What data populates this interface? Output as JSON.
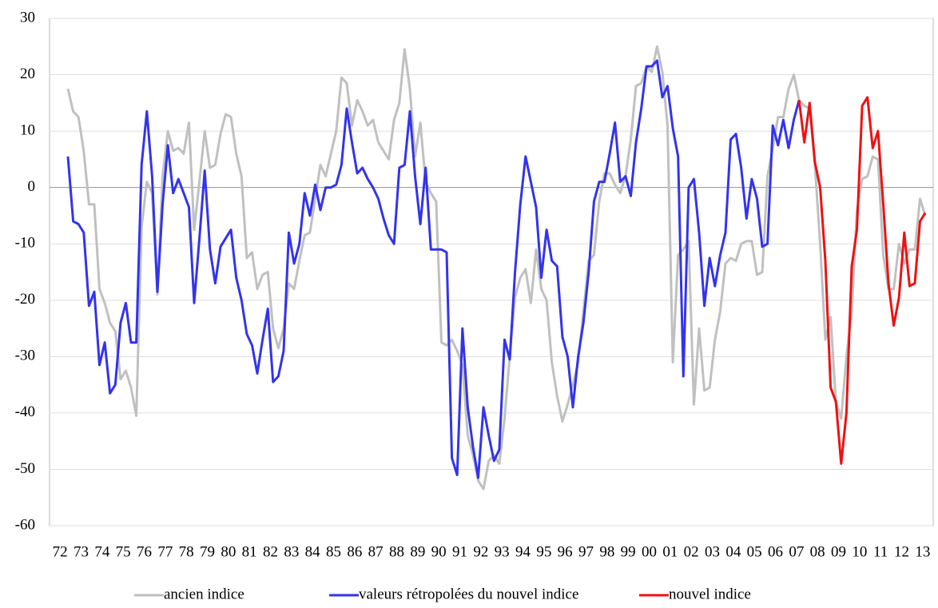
{
  "chart_data": {
    "type": "line",
    "categories": [
      "72",
      null,
      null,
      null,
      "73",
      null,
      null,
      null,
      "74",
      null,
      null,
      null,
      "75",
      null,
      null,
      null,
      "76",
      null,
      null,
      null,
      "77",
      null,
      null,
      null,
      "78",
      null,
      null,
      null,
      "79",
      null,
      null,
      null,
      "80",
      null,
      null,
      null,
      "81",
      null,
      null,
      null,
      "82",
      null,
      null,
      null,
      "83",
      null,
      null,
      null,
      "84",
      null,
      null,
      null,
      "85",
      null,
      null,
      null,
      "86",
      null,
      null,
      null,
      "87",
      null,
      null,
      null,
      "88",
      null,
      null,
      null,
      "89",
      null,
      null,
      null,
      "90",
      null,
      null,
      null,
      "91",
      null,
      null,
      null,
      "92",
      null,
      null,
      null,
      "93",
      null,
      null,
      null,
      "94",
      null,
      null,
      null,
      "95",
      null,
      null,
      null,
      "96",
      null,
      null,
      null,
      "97",
      null,
      null,
      null,
      "98",
      null,
      null,
      null,
      "99",
      null,
      null,
      null,
      "00",
      null,
      null,
      null,
      "01",
      null,
      null,
      null,
      "02",
      null,
      null,
      null,
      "03",
      null,
      null,
      null,
      "04",
      null,
      null,
      null,
      "05",
      null,
      null,
      null,
      "06",
      null,
      null,
      null,
      "07",
      null,
      null,
      null,
      "08",
      null,
      null,
      null,
      "09",
      null,
      null,
      null,
      "10",
      null,
      null,
      null,
      "11",
      null,
      null,
      null,
      "12",
      null,
      null,
      null,
      "13",
      null,
      null,
      null
    ],
    "series": [
      {
        "name": "ancien indice",
        "color": "#c0c0c0",
        "values": [
          null,
          null,
          null,
          17.5,
          13.5,
          12.5,
          6.5,
          -3,
          -3,
          -18,
          -20.5,
          -24,
          -25.5,
          -34,
          -32.5,
          -35.5,
          -40.5,
          -7,
          1,
          -1,
          -19,
          2,
          10,
          6.5,
          7,
          6,
          11.5,
          -7.5,
          1,
          10,
          3.5,
          4,
          9.5,
          13,
          12.5,
          6,
          2,
          -12.5,
          -11.5,
          -18,
          -15.5,
          -15,
          -25,
          -28.5,
          -25,
          -17,
          -18,
          -13,
          -8.5,
          -8,
          -2,
          4,
          2,
          6,
          10,
          19.5,
          18.5,
          11,
          15.5,
          13.5,
          11,
          12,
          8,
          6.5,
          5,
          12,
          15,
          24.5,
          17.5,
          5.5,
          11.5,
          1,
          -1,
          -2.5,
          -27.5,
          -28,
          -27,
          -29,
          -31.5,
          -44,
          -47.5,
          -52,
          -53.5,
          -48.5,
          -47.5,
          -49,
          -41,
          -30,
          -19.5,
          -16,
          -14.5,
          -20.5,
          -11,
          -18,
          -20,
          -31,
          -37,
          -41.5,
          -38.5,
          -35,
          -31,
          -22,
          -13,
          -12,
          -2.5,
          2.5,
          2.5,
          0.5,
          -1,
          2,
          8.5,
          18,
          18.5,
          21.5,
          20.5,
          25,
          20.5,
          11,
          -31,
          -12,
          -11,
          -9.5,
          -38.5,
          -25,
          -36,
          -35.5,
          -27,
          -22,
          -13.5,
          -12.5,
          -13,
          -10,
          -9.5,
          -9.5,
          -15.5,
          -15,
          2,
          7,
          12.5,
          12.5,
          17.5,
          20,
          15.5,
          14.5,
          14,
          4,
          -10,
          -27,
          -23,
          -38,
          -41,
          -30,
          -22,
          -4,
          1.5,
          2,
          5.5,
          5,
          -12,
          -18,
          -18,
          -10,
          -13.5,
          -11,
          -11,
          -2,
          -5,
          null
        ]
      },
      {
        "name": "valeurs rétropolées du nouvel indice",
        "color": "#3333ee",
        "values": [
          null,
          null,
          null,
          5.5,
          -6,
          -6.5,
          -8,
          -21,
          -18.5,
          -31.5,
          -27.5,
          -36.5,
          -35,
          -24,
          -20.5,
          -27.5,
          -27.5,
          4,
          13.5,
          2,
          -18.5,
          -3,
          7.5,
          -1,
          1.5,
          -1,
          -3.5,
          -20.5,
          -9,
          3,
          -11,
          -17,
          -10.5,
          -9,
          -7.5,
          -16,
          -20,
          -26,
          -28,
          -33,
          -27,
          -21.5,
          -34.5,
          -33.5,
          -29,
          -8,
          -13.5,
          -10,
          -1,
          -5,
          0.5,
          -4,
          0,
          0,
          0.5,
          4,
          14,
          8,
          2.5,
          3.5,
          1.5,
          0,
          -2,
          -5.5,
          -8.5,
          -10,
          3.5,
          4,
          13.5,
          2,
          -6.5,
          3.5,
          -11,
          -11,
          -11,
          -11.5,
          -48,
          -51,
          -25,
          -39,
          -46,
          -51.5,
          -39,
          -44,
          -48.5,
          -46.5,
          -27,
          -30.5,
          -15,
          -3,
          5.5,
          1,
          -3.5,
          -16,
          -7.5,
          -13,
          -14,
          -26.5,
          -30,
          -39,
          -30,
          -24,
          -15,
          -2.5,
          1,
          1,
          6,
          11.5,
          1,
          2,
          -1.5,
          8,
          14,
          21.5,
          21.5,
          22.5,
          16,
          18,
          10.5,
          5.5,
          -33.5,
          0,
          1.5,
          -8,
          -21,
          -12.5,
          -17.5,
          -12,
          -8,
          8.5,
          9.5,
          3.5,
          -5.5,
          1.5,
          -2,
          -10.5,
          -10,
          11,
          7.5,
          12,
          7,
          12,
          15.5,
          null,
          null,
          null,
          null,
          null,
          null,
          null,
          null,
          null,
          null,
          null,
          null,
          null,
          null,
          null,
          null,
          null,
          null,
          null,
          null,
          null,
          null,
          null,
          null,
          null
        ]
      },
      {
        "name": "nouvel indice",
        "color": "#ee1111",
        "values": [
          null,
          null,
          null,
          null,
          null,
          null,
          null,
          null,
          null,
          null,
          null,
          null,
          null,
          null,
          null,
          null,
          null,
          null,
          null,
          null,
          null,
          null,
          null,
          null,
          null,
          null,
          null,
          null,
          null,
          null,
          null,
          null,
          null,
          null,
          null,
          null,
          null,
          null,
          null,
          null,
          null,
          null,
          null,
          null,
          null,
          null,
          null,
          null,
          null,
          null,
          null,
          null,
          null,
          null,
          null,
          null,
          null,
          null,
          null,
          null,
          null,
          null,
          null,
          null,
          null,
          null,
          null,
          null,
          null,
          null,
          null,
          null,
          null,
          null,
          null,
          null,
          null,
          null,
          null,
          null,
          null,
          null,
          null,
          null,
          null,
          null,
          null,
          null,
          null,
          null,
          null,
          null,
          null,
          null,
          null,
          null,
          null,
          null,
          null,
          null,
          null,
          null,
          null,
          null,
          null,
          null,
          null,
          null,
          null,
          null,
          null,
          null,
          null,
          null,
          null,
          null,
          null,
          null,
          null,
          null,
          null,
          null,
          null,
          null,
          null,
          null,
          null,
          null,
          null,
          null,
          null,
          null,
          null,
          null,
          null,
          null,
          null,
          null,
          null,
          null,
          null,
          null,
          15.5,
          8,
          15,
          4.5,
          0,
          -13,
          -35.5,
          -38,
          -49,
          -40,
          -14,
          -7.5,
          14.5,
          16,
          7,
          10,
          -3,
          -17,
          -24.5,
          -19.5,
          -8,
          -17.5,
          -17,
          -6,
          -4.5,
          null
        ]
      }
    ],
    "ylim": [
      -60,
      30
    ],
    "yticks": [
      -60,
      -50,
      -40,
      -30,
      -20,
      -10,
      0,
      10,
      20,
      30
    ],
    "grid": true
  }
}
